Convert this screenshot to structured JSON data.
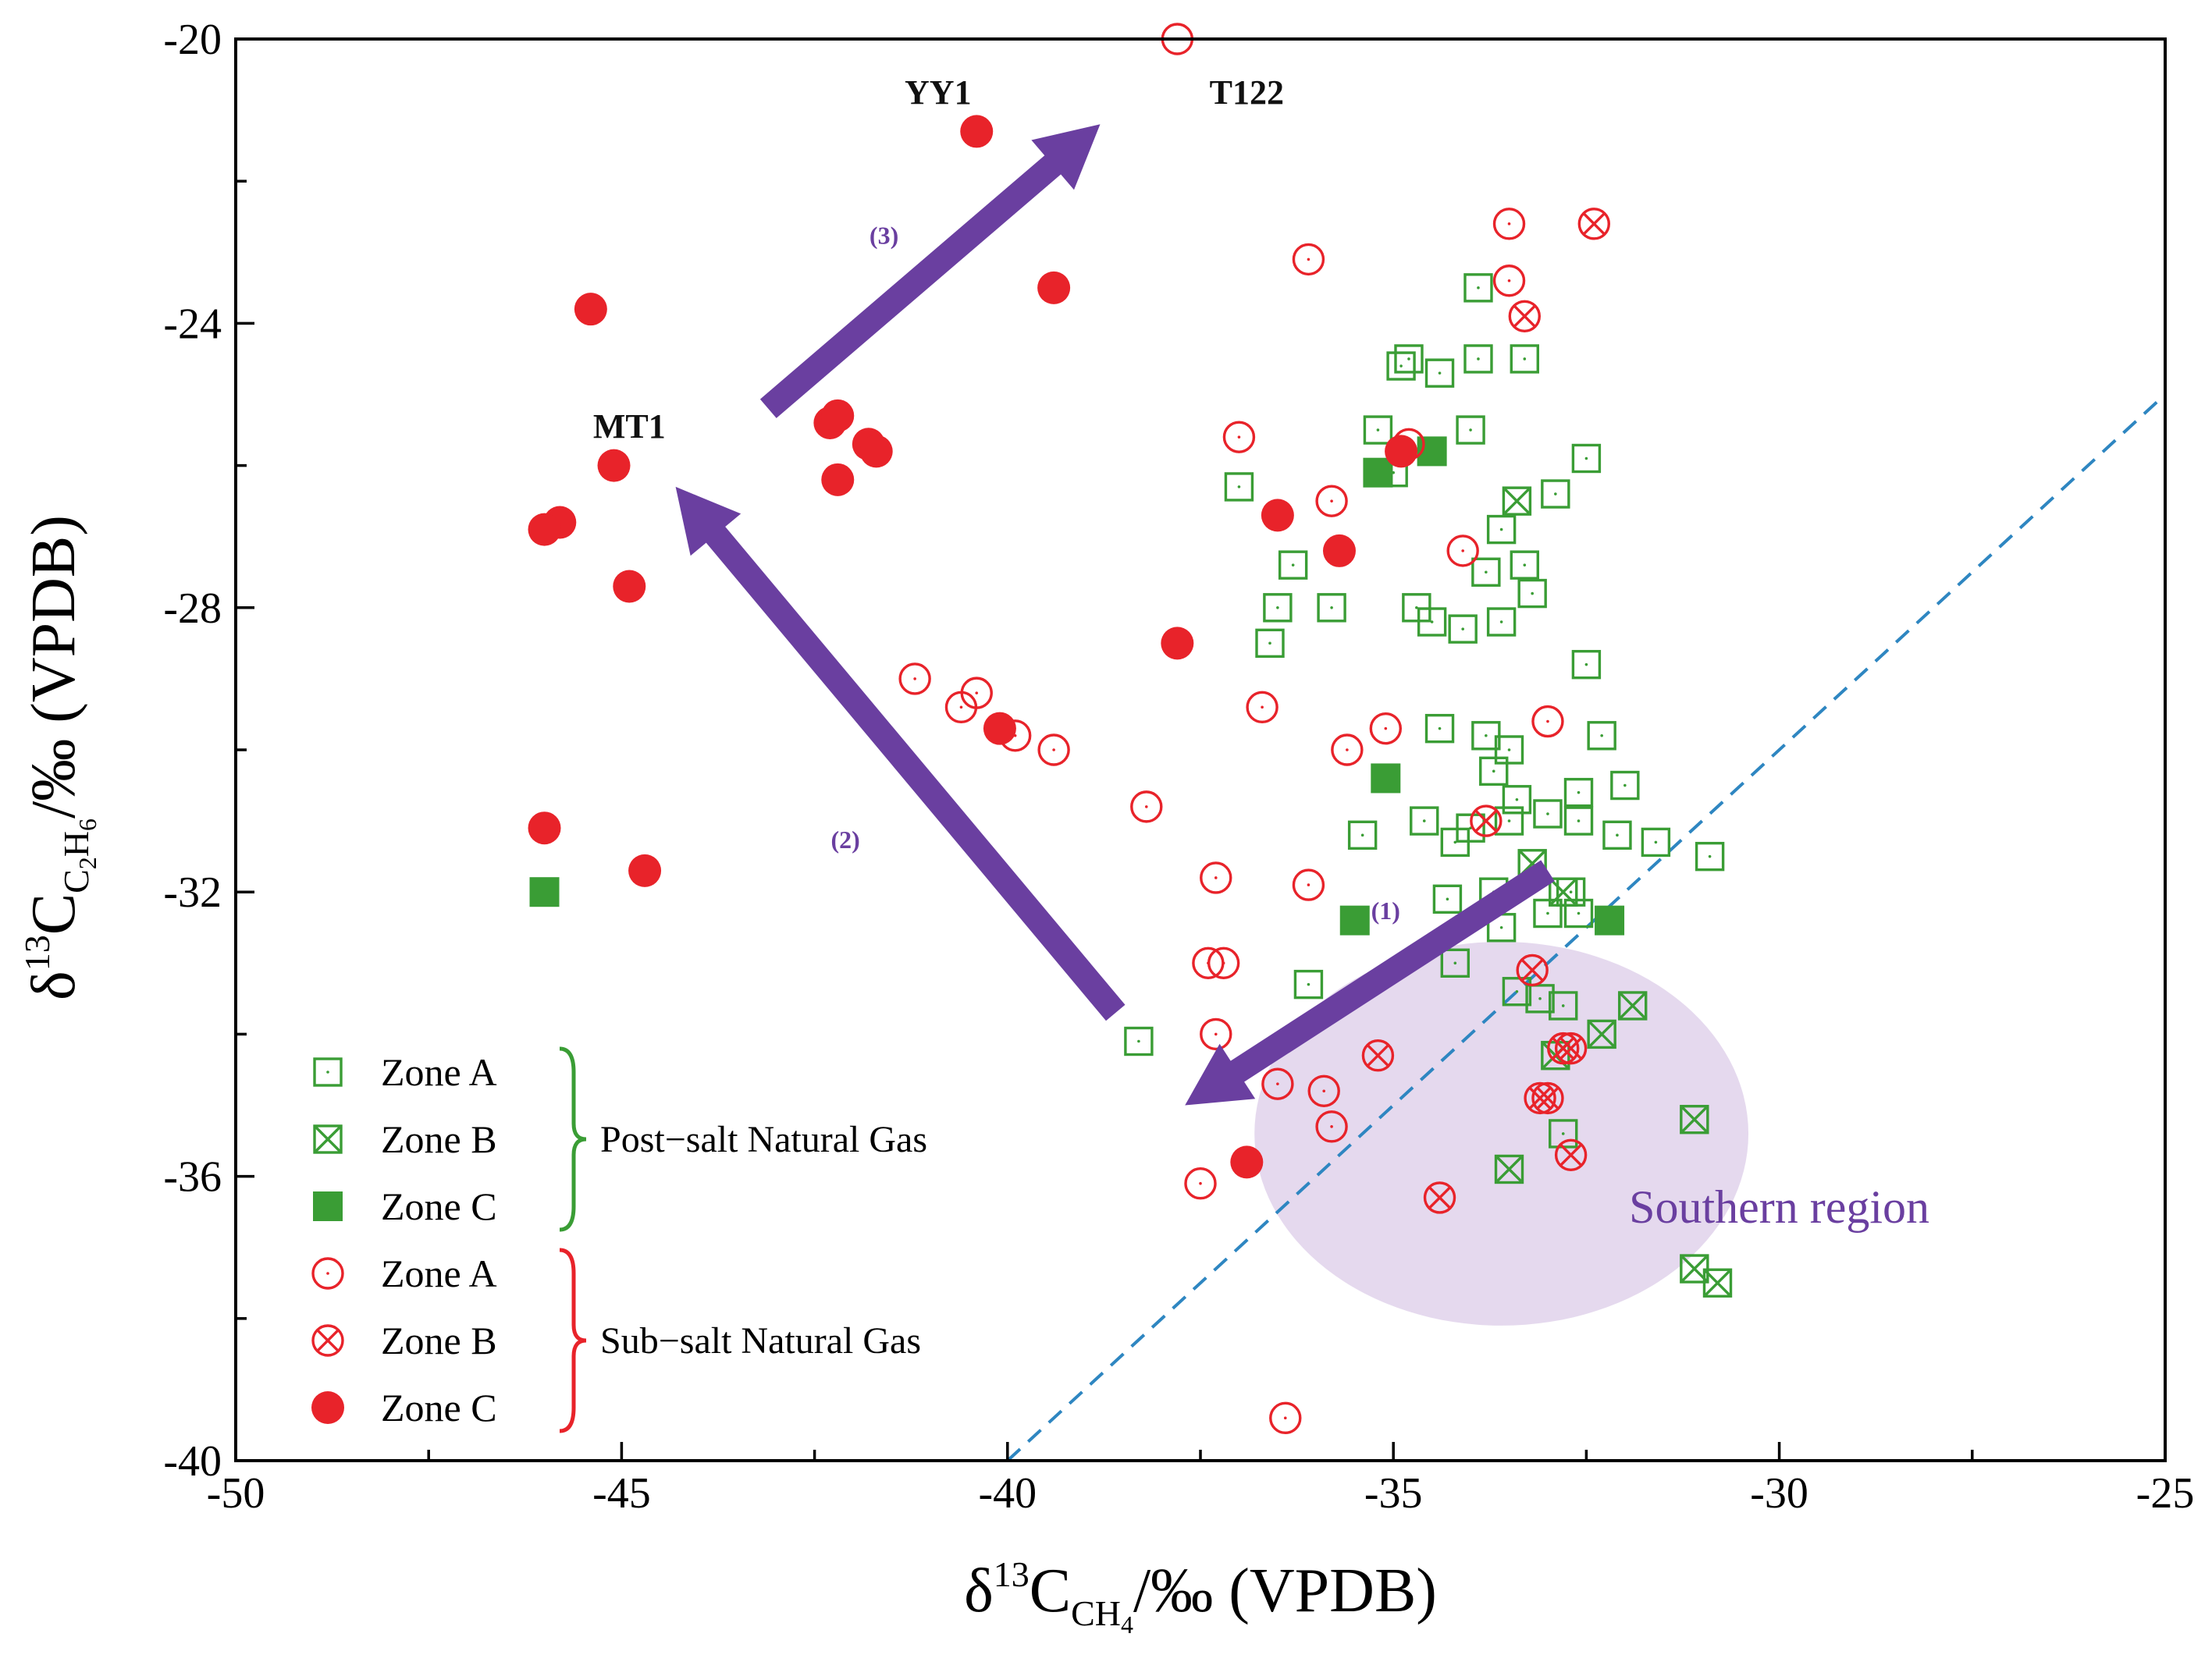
{
  "chart_data": {
    "type": "scatter",
    "xlabel": {
      "prefix": "δ",
      "sup": "13",
      "base": "C",
      "sub": "CH",
      "subsub": "4",
      "suffix": "/‰ (VPDB)"
    },
    "ylabel": {
      "prefix": "δ",
      "sup": "13",
      "base": "C",
      "sub": "C",
      "sub1": "2",
      "mid": "H",
      "sub2": "6",
      "suffix": "/‰ (VPDB)"
    },
    "xlim": [
      -50,
      -25
    ],
    "ylim": [
      -40,
      -20
    ],
    "xticks": [
      -50,
      -45,
      -40,
      -35,
      -30,
      -25
    ],
    "yticks": [
      -40,
      -36,
      -32,
      -28,
      -24,
      -20
    ],
    "xtick_labels": [
      "-50",
      "-45",
      "-40",
      "-35",
      "-30",
      "-25"
    ],
    "ytick_labels": [
      "-40",
      "-36",
      "-32",
      "-28",
      "-24",
      "-20"
    ],
    "grid": false,
    "legend_position": "bottom-left",
    "legend": {
      "groups": [
        {
          "label": "Post−salt Natural Gas",
          "color": "#3a9d35",
          "entries": [
            {
              "label": "Zone A",
              "marker": "open-square"
            },
            {
              "label": "Zone B",
              "marker": "crossed-square"
            },
            {
              "label": "Zone C",
              "marker": "filled-square"
            }
          ]
        },
        {
          "label": "Sub−salt Natural Gas",
          "color": "#e8232a",
          "entries": [
            {
              "label": "Zone A",
              "marker": "open-circle"
            },
            {
              "label": "Zone B",
              "marker": "crossed-circle"
            },
            {
              "label": "Zone C",
              "marker": "filled-circle"
            }
          ]
        }
      ]
    },
    "colors": {
      "post_salt": "#3a9d35",
      "sub_salt": "#e8232a",
      "arrow": "#6a3fa0",
      "region_fill": "#e2d5ec",
      "region_text": "#6a3fa0",
      "diagonal": "#2e86c1"
    },
    "series": [
      {
        "group": "post-salt",
        "zone": "A",
        "marker": "open-square",
        "points": [
          [
            -38.3,
            -34.1
          ],
          [
            -37.0,
            -26.3
          ],
          [
            -36.6,
            -28.5
          ],
          [
            -36.5,
            -28.0
          ],
          [
            -36.3,
            -27.4
          ],
          [
            -36.1,
            -33.3
          ],
          [
            -35.8,
            -28.0
          ],
          [
            -35.4,
            -31.2
          ],
          [
            -35.2,
            -25.5
          ],
          [
            -35.0,
            -26.1
          ],
          [
            -34.9,
            -24.6
          ],
          [
            -34.8,
            -24.5
          ],
          [
            -34.7,
            -28.0
          ],
          [
            -34.6,
            -31.0
          ],
          [
            -34.5,
            -28.2
          ],
          [
            -34.4,
            -24.7
          ],
          [
            -34.4,
            -29.7
          ],
          [
            -34.3,
            -32.1
          ],
          [
            -34.2,
            -33.0
          ],
          [
            -34.2,
            -31.3
          ],
          [
            -34.1,
            -28.3
          ],
          [
            -34.0,
            -25.5
          ],
          [
            -34.0,
            -31.1
          ],
          [
            -33.9,
            -23.5
          ],
          [
            -33.9,
            -24.5
          ],
          [
            -33.8,
            -27.5
          ],
          [
            -33.8,
            -29.8
          ],
          [
            -33.7,
            -30.3
          ],
          [
            -33.7,
            -32.0
          ],
          [
            -33.6,
            -26.9
          ],
          [
            -33.6,
            -28.2
          ],
          [
            -33.5,
            -30.0
          ],
          [
            -33.5,
            -31.0
          ],
          [
            -33.4,
            -33.4
          ],
          [
            -33.4,
            -30.7
          ],
          [
            -33.3,
            -24.5
          ],
          [
            -33.3,
            -27.4
          ],
          [
            -33.2,
            -27.8
          ],
          [
            -33.1,
            -33.5
          ],
          [
            -33.0,
            -32.3
          ],
          [
            -33.0,
            -30.9
          ],
          [
            -32.9,
            -26.4
          ],
          [
            -32.8,
            -33.6
          ],
          [
            -32.8,
            -35.4
          ],
          [
            -32.7,
            -32.0
          ],
          [
            -32.6,
            -32.3
          ],
          [
            -32.6,
            -30.6
          ],
          [
            -32.5,
            -25.9
          ],
          [
            -32.5,
            -28.8
          ],
          [
            -32.3,
            -29.8
          ],
          [
            -32.1,
            -31.2
          ],
          [
            -32.0,
            -30.5
          ],
          [
            -31.6,
            -31.3
          ],
          [
            -30.9,
            -31.5
          ],
          [
            -32.6,
            -31.0
          ],
          [
            -33.6,
            -32.5
          ]
        ]
      },
      {
        "group": "post-salt",
        "zone": "B",
        "marker": "crossed-square",
        "points": [
          [
            -33.4,
            -26.5
          ],
          [
            -33.2,
            -31.6
          ],
          [
            -32.9,
            -34.3
          ],
          [
            -32.8,
            -32.0
          ],
          [
            -32.3,
            -34.0
          ],
          [
            -31.9,
            -33.6
          ],
          [
            -31.1,
            -35.2
          ],
          [
            -31.1,
            -37.3
          ],
          [
            -30.8,
            -37.5
          ],
          [
            -33.5,
            -35.9
          ]
        ]
      },
      {
        "group": "post-salt",
        "zone": "C",
        "marker": "filled-square",
        "points": [
          [
            -46.0,
            -32.0
          ],
          [
            -35.5,
            -32.4
          ],
          [
            -35.2,
            -26.1
          ],
          [
            -35.1,
            -30.4
          ],
          [
            -34.5,
            -25.8
          ],
          [
            -32.2,
            -32.4
          ]
        ]
      },
      {
        "group": "sub-salt",
        "zone": "A",
        "marker": "open-circle",
        "points": [
          [
            -37.8,
            -20.0
          ],
          [
            -36.1,
            -23.1
          ],
          [
            -33.5,
            -22.6
          ],
          [
            -33.5,
            -23.4
          ],
          [
            -37.0,
            -25.6
          ],
          [
            -34.8,
            -25.7
          ],
          [
            -35.8,
            -26.5
          ],
          [
            -34.1,
            -27.2
          ],
          [
            -41.2,
            -29.0
          ],
          [
            -40.6,
            -29.4
          ],
          [
            -40.4,
            -29.2
          ],
          [
            -39.9,
            -29.8
          ],
          [
            -39.4,
            -30.0
          ],
          [
            -36.7,
            -29.4
          ],
          [
            -35.6,
            -30.0
          ],
          [
            -35.1,
            -29.7
          ],
          [
            -33.0,
            -29.6
          ],
          [
            -38.2,
            -30.8
          ],
          [
            -37.3,
            -31.8
          ],
          [
            -36.1,
            -31.9
          ],
          [
            -37.4,
            -33.0
          ],
          [
            -37.2,
            -33.0
          ],
          [
            -37.3,
            -34.0
          ],
          [
            -36.5,
            -34.7
          ],
          [
            -35.9,
            -34.8
          ],
          [
            -35.8,
            -35.3
          ],
          [
            -37.5,
            -36.1
          ],
          [
            -36.4,
            -39.4
          ]
        ]
      },
      {
        "group": "sub-salt",
        "zone": "B",
        "marker": "crossed-circle",
        "points": [
          [
            -32.4,
            -22.6
          ],
          [
            -33.3,
            -23.9
          ],
          [
            -33.8,
            -31.0
          ],
          [
            -33.2,
            -33.1
          ],
          [
            -35.2,
            -34.3
          ],
          [
            -32.8,
            -34.2
          ],
          [
            -32.7,
            -34.2
          ],
          [
            -33.1,
            -34.9
          ],
          [
            -33.0,
            -34.9
          ],
          [
            -34.4,
            -36.3
          ],
          [
            -32.7,
            -35.7
          ]
        ]
      },
      {
        "group": "sub-salt",
        "zone": "C",
        "marker": "filled-circle",
        "points": [
          [
            -40.4,
            -21.3
          ],
          [
            -39.4,
            -23.5
          ],
          [
            -45.4,
            -23.8
          ],
          [
            -42.3,
            -25.4
          ],
          [
            -42.2,
            -25.3
          ],
          [
            -41.8,
            -25.7
          ],
          [
            -41.7,
            -25.8
          ],
          [
            -42.2,
            -26.2
          ],
          [
            -45.1,
            -26.0
          ],
          [
            -45.8,
            -26.8
          ],
          [
            -46.0,
            -26.9
          ],
          [
            -44.9,
            -27.7
          ],
          [
            -36.5,
            -26.7
          ],
          [
            -35.7,
            -27.2
          ],
          [
            -37.8,
            -28.5
          ],
          [
            -40.1,
            -29.7
          ],
          [
            -46.0,
            -31.1
          ],
          [
            -44.7,
            -31.7
          ],
          [
            -34.9,
            -25.8
          ],
          [
            -36.9,
            -35.8
          ]
        ]
      }
    ],
    "annotations": [
      {
        "text": "YY1",
        "x": -40.9,
        "y": -20.8
      },
      {
        "text": "T122",
        "x": -36.9,
        "y": -20.8
      },
      {
        "text": "MT1",
        "x": -44.9,
        "y": -25.5
      },
      {
        "text": "(1)",
        "x": -35.1,
        "y": -32.3,
        "label_for": "arrow-1"
      },
      {
        "text": "(2)",
        "x": -42.1,
        "y": -31.3,
        "label_for": "arrow-2"
      },
      {
        "text": "(3)",
        "x": -41.6,
        "y": -22.8,
        "label_for": "arrow-3"
      },
      {
        "text": "Southern region",
        "x": -30.0,
        "y": -36.5
      }
    ],
    "arrows": [
      {
        "id": "arrow-1",
        "from": [
          -33.0,
          -31.7
        ],
        "to": [
          -37.7,
          -35.0
        ]
      },
      {
        "id": "arrow-2",
        "from": [
          -38.6,
          -33.7
        ],
        "to": [
          -44.3,
          -26.3
        ]
      },
      {
        "id": "arrow-3",
        "from": [
          -43.1,
          -25.2
        ],
        "to": [
          -38.8,
          -21.2
        ]
      }
    ],
    "reference_line": {
      "style": "dashed",
      "from": [
        -40,
        -40
      ],
      "to": [
        -25,
        -25
      ]
    },
    "region": {
      "label": "Southern region",
      "center": [
        -33.6,
        -35.4
      ],
      "radius_x": 3.2,
      "radius_y": 2.7
    }
  }
}
